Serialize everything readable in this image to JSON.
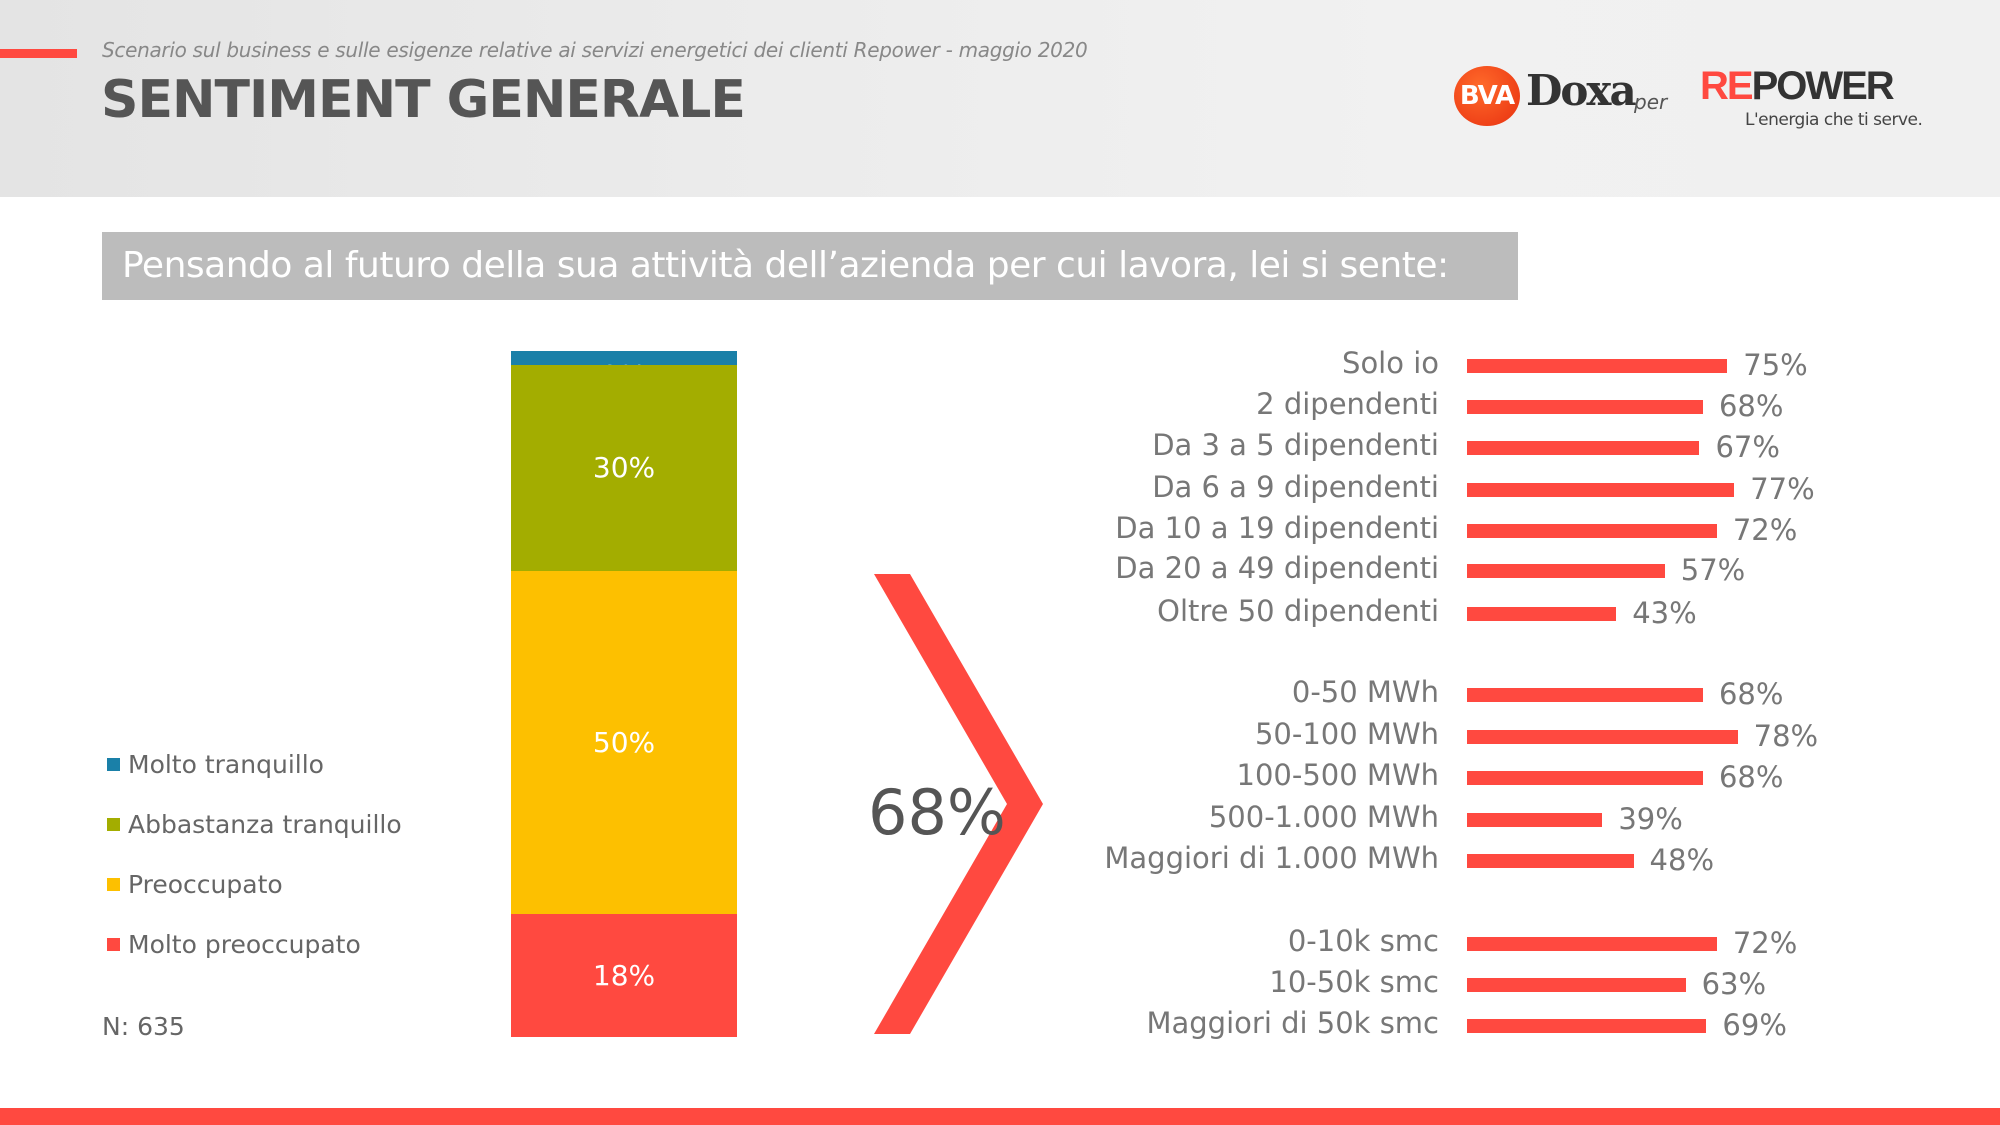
{
  "header": {
    "subtitle": "Scenario sul business e sulle esigenze relative ai servizi energetici dei clienti Repower - maggio 2020",
    "title": "SENTIMENT GENERALE",
    "logo_bva": "BVA",
    "logo_doxa": "Doxa",
    "logo_per": "per",
    "logo_repower_re": "RE",
    "logo_repower_rest": "POWER",
    "logo_tagline": "L'energia che ti serve."
  },
  "question": "Pensando al futuro della sua attività dell’azienda per cui lavora, lei si sente:",
  "sample": "N: 635",
  "colors": {
    "accent": "#ff4940",
    "molto_tranquillo": "#1a80a8",
    "abbastanza_tranquillo": "#a3ad00",
    "preoccupato": "#fdc000",
    "molto_preoccupato": "#ff4940"
  },
  "chart_data": [
    {
      "type": "bar",
      "stacked": true,
      "title": "Sentiment generale",
      "legend": [
        "Molto tranquillo",
        "Abbastanza tranquillo",
        "Preoccupato",
        "Molto preoccupato"
      ],
      "legend_position": "left",
      "series": [
        {
          "name": "Molto tranquillo",
          "value": 2,
          "label": "2%",
          "color": "#1a80a8"
        },
        {
          "name": "Abbastanza tranquillo",
          "value": 30,
          "label": "30%",
          "color": "#a3ad00"
        },
        {
          "name": "Preoccupato",
          "value": 50,
          "label": "50%",
          "color": "#fdc000"
        },
        {
          "name": "Molto preoccupato",
          "value": 18,
          "label": "18%",
          "color": "#ff4940"
        }
      ],
      "total_worried": "68%"
    },
    {
      "type": "bar",
      "orientation": "horizontal",
      "title": "Preoccupati per segmento",
      "xlim": [
        0,
        100
      ],
      "groups": [
        {
          "items": [
            {
              "category": "Solo io",
              "value": 75,
              "label": "75%"
            },
            {
              "category": "2 dipendenti",
              "value": 68,
              "label": "68%"
            },
            {
              "category": "Da 3 a 5 dipendenti",
              "value": 67,
              "label": "67%"
            },
            {
              "category": "Da 6 a 9 dipendenti",
              "value": 77,
              "label": "77%"
            },
            {
              "category": "Da 10 a 19 dipendenti",
              "value": 72,
              "label": "72%"
            },
            {
              "category": "Da 20 a 49 dipendenti",
              "value": 57,
              "label": "57%"
            },
            {
              "category": "Oltre 50 dipendenti",
              "value": 43,
              "label": "43%"
            }
          ]
        },
        {
          "items": [
            {
              "category": "0-50 MWh",
              "value": 68,
              "label": "68%"
            },
            {
              "category": "50-100 MWh",
              "value": 78,
              "label": "78%"
            },
            {
              "category": "100-500 MWh",
              "value": 68,
              "label": "68%"
            },
            {
              "category": "500-1.000 MWh",
              "value": 39,
              "label": "39%"
            },
            {
              "category": "Maggiori di 1.000 MWh",
              "value": 48,
              "label": "48%"
            }
          ]
        },
        {
          "items": [
            {
              "category": "0-10k smc",
              "value": 72,
              "label": "72%"
            },
            {
              "category": "10-50k smc",
              "value": 63,
              "label": "63%"
            },
            {
              "category": "Maggiori di 50k smc",
              "value": 69,
              "label": "69%"
            }
          ]
        }
      ]
    }
  ]
}
